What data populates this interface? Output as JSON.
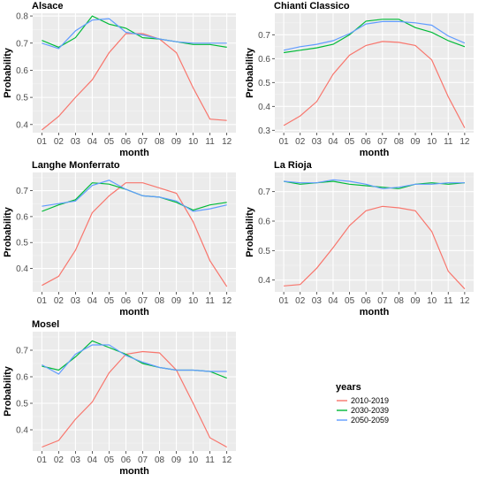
{
  "legend": {
    "title": "years",
    "entries": [
      {
        "label": "2010-2019",
        "color": "#F8766D"
      },
      {
        "label": "2030-2039",
        "color": "#00BA38"
      },
      {
        "label": "2050-2059",
        "color": "#619CFF"
      }
    ]
  },
  "chart_data": [
    {
      "type": "line",
      "title": "Alsace",
      "xlabel": "month",
      "ylabel": "Probability",
      "categories": [
        "01",
        "02",
        "03",
        "04",
        "05",
        "06",
        "07",
        "08",
        "09",
        "10",
        "11",
        "12"
      ],
      "ylim": [
        0.37,
        0.81
      ],
      "yticks": [
        0.4,
        0.5,
        0.6,
        0.7,
        0.8
      ],
      "series": [
        {
          "name": "2010-2019",
          "values": [
            0.38,
            0.43,
            0.5,
            0.565,
            0.665,
            0.735,
            0.735,
            0.715,
            0.665,
            0.535,
            0.42,
            0.415
          ]
        },
        {
          "name": "2030-2039",
          "values": [
            0.71,
            0.685,
            0.72,
            0.8,
            0.77,
            0.755,
            0.72,
            0.715,
            0.705,
            0.695,
            0.695,
            0.685
          ]
        },
        {
          "name": "2050-2059",
          "values": [
            0.7,
            0.68,
            0.745,
            0.785,
            0.79,
            0.74,
            0.73,
            0.715,
            0.705,
            0.7,
            0.7,
            0.7
          ]
        }
      ]
    },
    {
      "type": "line",
      "title": "Chianti Classico",
      "xlabel": "month",
      "ylabel": "Probability",
      "categories": [
        "01",
        "02",
        "03",
        "04",
        "05",
        "06",
        "07",
        "08",
        "09",
        "10",
        "11",
        "12"
      ],
      "ylim": [
        0.29,
        0.79
      ],
      "yticks": [
        0.3,
        0.4,
        0.5,
        0.6,
        0.7
      ],
      "series": [
        {
          "name": "2010-2019",
          "values": [
            0.32,
            0.36,
            0.42,
            0.535,
            0.615,
            0.655,
            0.672,
            0.668,
            0.655,
            0.595,
            0.44,
            0.31
          ]
        },
        {
          "name": "2030-2039",
          "values": [
            0.625,
            0.635,
            0.645,
            0.66,
            0.7,
            0.757,
            0.765,
            0.765,
            0.73,
            0.71,
            0.675,
            0.65
          ]
        },
        {
          "name": "2050-2059",
          "values": [
            0.635,
            0.65,
            0.66,
            0.675,
            0.705,
            0.745,
            0.755,
            0.755,
            0.75,
            0.74,
            0.695,
            0.665
          ]
        }
      ]
    },
    {
      "type": "line",
      "title": "Langhe Monferrato",
      "xlabel": "month",
      "ylabel": "Probability",
      "categories": [
        "01",
        "02",
        "03",
        "04",
        "05",
        "06",
        "07",
        "08",
        "09",
        "10",
        "11",
        "12"
      ],
      "ylim": [
        0.31,
        0.77
      ],
      "yticks": [
        0.4,
        0.5,
        0.6,
        0.7
      ],
      "series": [
        {
          "name": "2010-2019",
          "values": [
            0.335,
            0.37,
            0.47,
            0.615,
            0.68,
            0.73,
            0.73,
            0.71,
            0.69,
            0.58,
            0.43,
            0.33
          ]
        },
        {
          "name": "2030-2039",
          "values": [
            0.62,
            0.645,
            0.665,
            0.73,
            0.725,
            0.705,
            0.68,
            0.675,
            0.655,
            0.625,
            0.645,
            0.655
          ]
        },
        {
          "name": "2050-2059",
          "values": [
            0.64,
            0.65,
            0.66,
            0.72,
            0.74,
            0.705,
            0.68,
            0.675,
            0.66,
            0.62,
            0.63,
            0.645
          ]
        }
      ]
    },
    {
      "type": "line",
      "title": "La Rioja",
      "xlabel": "month",
      "ylabel": "Probability",
      "categories": [
        "01",
        "02",
        "03",
        "04",
        "05",
        "06",
        "07",
        "08",
        "09",
        "10",
        "11",
        "12"
      ],
      "ylim": [
        0.36,
        0.765
      ],
      "yticks": [
        0.4,
        0.5,
        0.6,
        0.7
      ],
      "series": [
        {
          "name": "2010-2019",
          "values": [
            0.38,
            0.385,
            0.44,
            0.51,
            0.585,
            0.635,
            0.65,
            0.645,
            0.635,
            0.565,
            0.43,
            0.37
          ]
        },
        {
          "name": "2030-2039",
          "values": [
            0.735,
            0.725,
            0.73,
            0.735,
            0.725,
            0.72,
            0.715,
            0.71,
            0.725,
            0.73,
            0.725,
            0.73
          ]
        },
        {
          "name": "2050-2059",
          "values": [
            0.735,
            0.73,
            0.73,
            0.74,
            0.735,
            0.725,
            0.71,
            0.715,
            0.725,
            0.725,
            0.73,
            0.73
          ]
        }
      ]
    },
    {
      "type": "line",
      "title": "Mosel",
      "xlabel": "month",
      "ylabel": "Probability",
      "categories": [
        "01",
        "02",
        "03",
        "04",
        "05",
        "06",
        "07",
        "08",
        "09",
        "10",
        "11",
        "12"
      ],
      "ylim": [
        0.32,
        0.77
      ],
      "yticks": [
        0.4,
        0.5,
        0.6,
        0.7
      ],
      "series": [
        {
          "name": "2010-2019",
          "values": [
            0.335,
            0.36,
            0.44,
            0.505,
            0.615,
            0.685,
            0.695,
            0.69,
            0.625,
            0.5,
            0.37,
            0.335
          ]
        },
        {
          "name": "2030-2039",
          "values": [
            0.64,
            0.625,
            0.675,
            0.735,
            0.71,
            0.685,
            0.65,
            0.635,
            0.625,
            0.625,
            0.62,
            0.595
          ]
        },
        {
          "name": "2050-2059",
          "values": [
            0.645,
            0.61,
            0.685,
            0.72,
            0.72,
            0.68,
            0.655,
            0.635,
            0.625,
            0.625,
            0.62,
            0.62
          ]
        }
      ]
    }
  ]
}
